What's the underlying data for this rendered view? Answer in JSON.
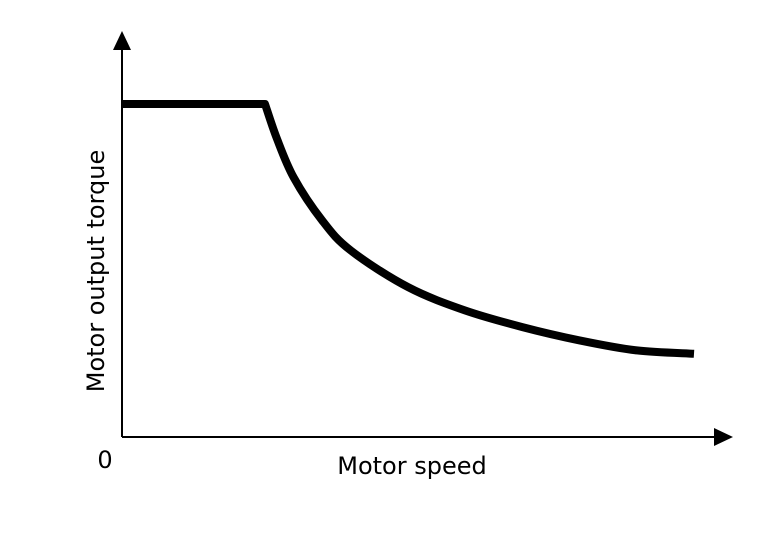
{
  "chart_data": {
    "type": "line",
    "title": "",
    "xlabel": "Motor speed",
    "ylabel": "Motor output torque",
    "origin_label": "0",
    "xlim": [
      0,
      1
    ],
    "ylim": [
      0,
      1
    ],
    "grid": false,
    "legend": "none",
    "series": [
      {
        "x": [
          0,
          0.25,
          0.27,
          0.3,
          0.35,
          0.4,
          0.5,
          0.6,
          0.7,
          0.8,
          0.9,
          1.0
        ],
        "y": [
          1.0,
          1.0,
          0.9,
          0.78,
          0.65,
          0.56,
          0.45,
          0.38,
          0.33,
          0.29,
          0.26,
          0.25
        ]
      }
    ]
  },
  "colors": {
    "curve": "#000000",
    "axes": "#000000",
    "background": "#ffffff"
  }
}
